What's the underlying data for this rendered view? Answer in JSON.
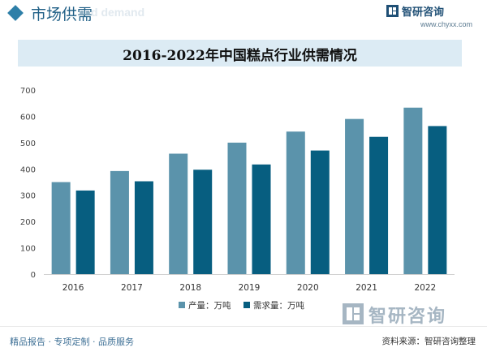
{
  "header": {
    "section_title": "市场供需",
    "watermark_en": "d demand"
  },
  "brand": {
    "name": "智研咨询",
    "url": "www.chyxx.com",
    "accent_color": "#1f4f75"
  },
  "watermark": {
    "text": "智研咨询"
  },
  "footer": {
    "tagline": "精品报告 · 专项定制 · 品质服务",
    "source": "资料来源：智研咨询整理"
  },
  "chart_data": {
    "type": "bar",
    "title": "2016-2022年中国糕点行业供需情况",
    "categories": [
      "2016",
      "2017",
      "2018",
      "2019",
      "2020",
      "2021",
      "2022"
    ],
    "series": [
      {
        "name": "产量：万吨",
        "color": "#5b93ab",
        "values": [
          350,
          392,
          458,
          500,
          542,
          590,
          633
        ]
      },
      {
        "name": "需求量：万吨",
        "color": "#075e80",
        "values": [
          318,
          353,
          397,
          417,
          470,
          522,
          563
        ]
      }
    ],
    "ylim": [
      0,
      700
    ],
    "yticks": [
      0,
      100,
      200,
      300,
      400,
      500,
      600,
      700
    ],
    "legend_position": "bottom",
    "grid": false
  }
}
